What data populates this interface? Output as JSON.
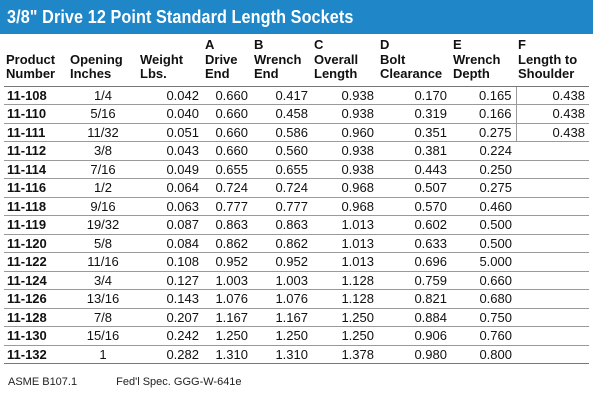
{
  "title": "3/8\" Drive 12 Point Standard Length Sockets",
  "headers": [
    [
      "",
      "Product",
      "Number"
    ],
    [
      "",
      "Opening",
      "Inches"
    ],
    [
      "",
      "Weight",
      "Lbs."
    ],
    [
      "A",
      "Drive",
      "End"
    ],
    [
      "B",
      "Wrench",
      "End"
    ],
    [
      "C",
      "Overall",
      "Length"
    ],
    [
      "D",
      "Bolt",
      "Clearance"
    ],
    [
      "E",
      "Wrench",
      "Depth"
    ],
    [
      "F",
      "Length to",
      "Shoulder"
    ]
  ],
  "rows": [
    [
      "11-108",
      "1/4",
      "0.042",
      "0.660",
      "0.417",
      "0.938",
      "0.170",
      "0.165",
      "0.438"
    ],
    [
      "11-110",
      "5/16",
      "0.040",
      "0.660",
      "0.458",
      "0.938",
      "0.319",
      "0.166",
      "0.438"
    ],
    [
      "11-111",
      "11/32",
      "0.051",
      "0.660",
      "0.586",
      "0.960",
      "0.351",
      "0.275",
      "0.438"
    ],
    [
      "11-112",
      "3/8",
      "0.043",
      "0.660",
      "0.560",
      "0.938",
      "0.381",
      "0.224",
      ""
    ],
    [
      "11-114",
      "7/16",
      "0.049",
      "0.655",
      "0.655",
      "0.938",
      "0.443",
      "0.250",
      ""
    ],
    [
      "11-116",
      "1/2",
      "0.064",
      "0.724",
      "0.724",
      "0.968",
      "0.507",
      "0.275",
      ""
    ],
    [
      "11-118",
      "9/16",
      "0.063",
      "0.777",
      "0.777",
      "0.968",
      "0.570",
      "0.460",
      ""
    ],
    [
      "11-119",
      "19/32",
      "0.087",
      "0.863",
      "0.863",
      "1.013",
      "0.602",
      "0.500",
      ""
    ],
    [
      "11-120",
      "5/8",
      "0.084",
      "0.862",
      "0.862",
      "1.013",
      "0.633",
      "0.500",
      ""
    ],
    [
      "11-122",
      "11/16",
      "0.108",
      "0.952",
      "0.952",
      "1.013",
      "0.696",
      "5.000",
      ""
    ],
    [
      "11-124",
      "3/4",
      "0.127",
      "1.003",
      "1.003",
      "1.128",
      "0.759",
      "0.660",
      ""
    ],
    [
      "11-126",
      "13/16",
      "0.143",
      "1.076",
      "1.076",
      "1.128",
      "0.821",
      "0.680",
      ""
    ],
    [
      "11-128",
      "7/8",
      "0.207",
      "1.167",
      "1.167",
      "1.250",
      "0.884",
      "0.750",
      ""
    ],
    [
      "11-130",
      "15/16",
      "0.242",
      "1.250",
      "1.250",
      "1.250",
      "0.906",
      "0.760",
      ""
    ],
    [
      "11-132",
      "1",
      "0.282",
      "1.310",
      "1.310",
      "1.378",
      "0.980",
      "0.800",
      ""
    ]
  ],
  "footer": {
    "standard": "ASME B107.1",
    "spec": "Fed'l Spec. GGG-W-641e"
  },
  "colors": {
    "title_background": "#1f86c8",
    "title_text": "#ffffff"
  }
}
